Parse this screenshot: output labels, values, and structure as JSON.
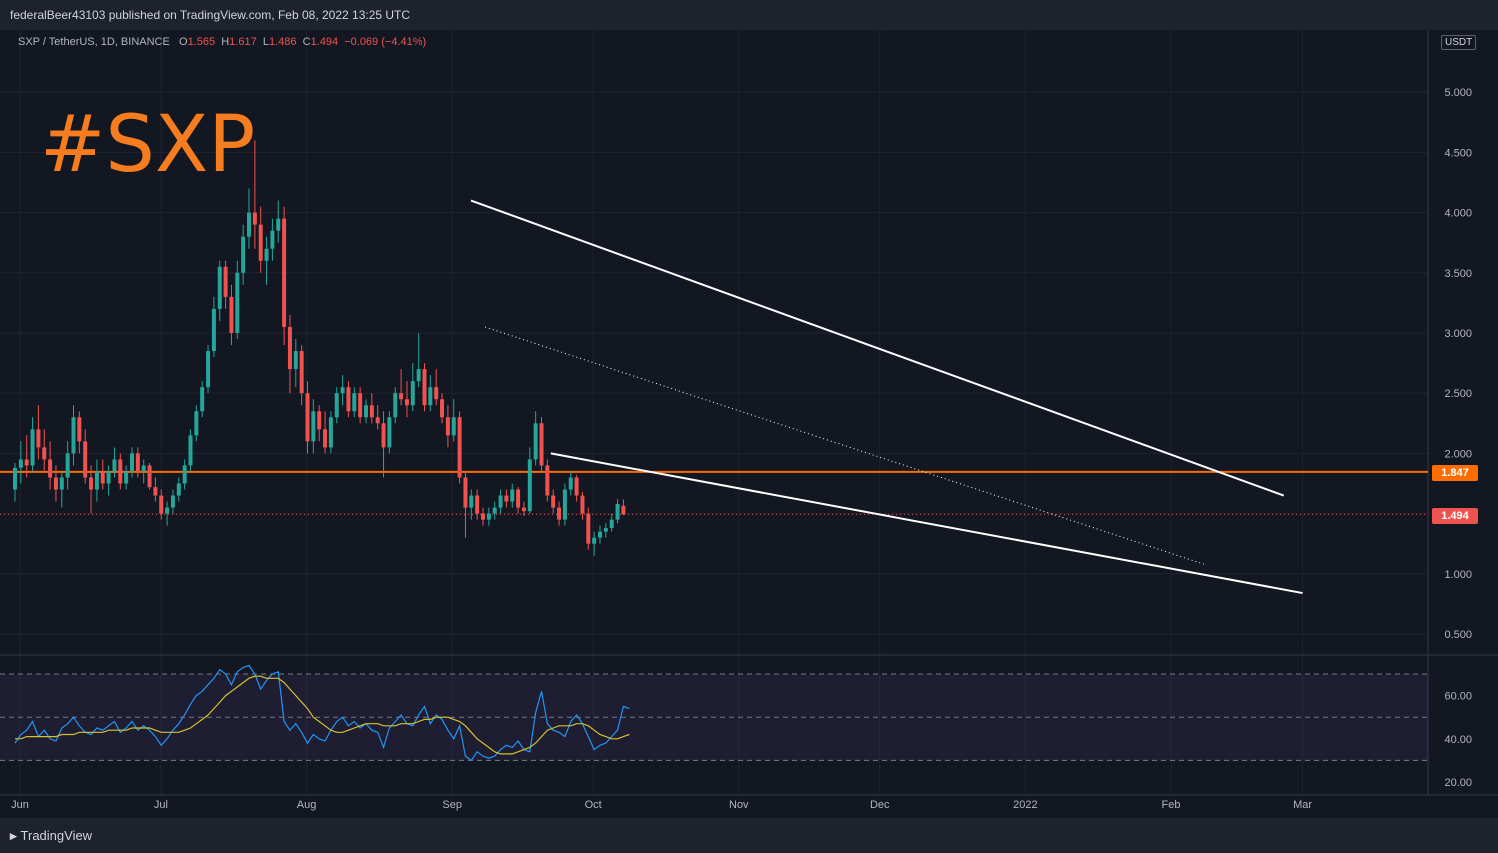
{
  "publisher_line": "federalBeer43103 published on TradingView.com, Feb 08, 2022 13:25 UTC",
  "symbol": {
    "pair": "SXP / TetherUS, 1D, BINANCE",
    "open_label": "O",
    "open": "1.565",
    "high_label": "H",
    "high": "1.617",
    "low_label": "L",
    "low": "1.486",
    "close_label": "C",
    "close": "1.494",
    "change": "−0.069 (−4.41%)"
  },
  "overlay_title": "#SXP",
  "currency_label": "USDT",
  "price_tags": {
    "level": "1.847",
    "last": "1.494"
  },
  "brand": "TradingView",
  "colors": {
    "up": "#26a69a",
    "down": "#ef5350",
    "level": "#ff6d00",
    "rsi": "#2196f3",
    "rsi_ma": "#d4c32a",
    "title": "#f57c1f"
  },
  "chart_data": [
    {
      "type": "candlestick",
      "title": "SXP / TetherUS, 1D, BINANCE",
      "x_ticks": [
        "Jun",
        "Jul",
        "Aug",
        "Sep",
        "Oct",
        "Nov",
        "Dec",
        "2022",
        "Feb",
        "Mar"
      ],
      "y_ticks": [
        "0.500",
        "1.000",
        "1.500",
        "2.000",
        "2.500",
        "3.000",
        "3.500",
        "4.000",
        "4.500",
        "5.000"
      ],
      "ylim": [
        0.5,
        5.0
      ],
      "horizontal_level": 1.847,
      "last_price": 1.494,
      "trendlines": [
        {
          "name": "upper",
          "from": [
            "2021-09-05",
            4.1
          ],
          "to": [
            "2022-02-25",
            1.65
          ],
          "style": "solid"
        },
        {
          "name": "lower",
          "from": [
            "2021-09-22",
            2.0
          ],
          "to": [
            "2022-03-01",
            0.84
          ],
          "style": "solid"
        },
        {
          "name": "middle",
          "from": [
            "2021-09-08",
            3.05
          ],
          "to": [
            "2022-02-08",
            1.08
          ],
          "style": "dotted"
        }
      ],
      "series": [
        {
          "values": [
            [
              1.7,
              1.92,
              1.6,
              1.88
            ],
            [
              1.88,
              2.1,
              1.75,
              1.95
            ],
            [
              1.95,
              2.15,
              1.8,
              1.9
            ],
            [
              1.9,
              2.3,
              1.85,
              2.2
            ],
            [
              2.2,
              2.4,
              1.95,
              2.05
            ],
            [
              2.05,
              2.2,
              1.85,
              1.95
            ],
            [
              1.95,
              2.1,
              1.7,
              1.8
            ],
            [
              1.8,
              1.9,
              1.6,
              1.7
            ],
            [
              1.7,
              1.85,
              1.55,
              1.8
            ],
            [
              1.8,
              2.1,
              1.7,
              2.0
            ],
            [
              2.0,
              2.4,
              1.9,
              2.3
            ],
            [
              2.3,
              2.35,
              2.0,
              2.1
            ],
            [
              2.1,
              2.2,
              1.75,
              1.8
            ],
            [
              1.8,
              1.9,
              1.5,
              1.7
            ],
            [
              1.7,
              1.95,
              1.6,
              1.85
            ],
            [
              1.85,
              1.95,
              1.7,
              1.75
            ],
            [
              1.75,
              1.9,
              1.65,
              1.85
            ],
            [
              1.85,
              2.05,
              1.8,
              1.95
            ],
            [
              1.95,
              2.0,
              1.7,
              1.75
            ],
            [
              1.75,
              1.9,
              1.7,
              1.85
            ],
            [
              1.85,
              2.05,
              1.8,
              2.0
            ],
            [
              2.0,
              2.05,
              1.8,
              1.85
            ],
            [
              1.85,
              1.95,
              1.75,
              1.9
            ],
            [
              1.9,
              1.92,
              1.7,
              1.72
            ],
            [
              1.72,
              1.8,
              1.6,
              1.65
            ],
            [
              1.65,
              1.7,
              1.45,
              1.5
            ],
            [
              1.5,
              1.6,
              1.4,
              1.55
            ],
            [
              1.55,
              1.7,
              1.5,
              1.65
            ],
            [
              1.65,
              1.8,
              1.6,
              1.75
            ],
            [
              1.75,
              1.95,
              1.7,
              1.9
            ],
            [
              1.9,
              2.2,
              1.85,
              2.15
            ],
            [
              2.15,
              2.4,
              2.1,
              2.35
            ],
            [
              2.35,
              2.6,
              2.3,
              2.55
            ],
            [
              2.55,
              2.9,
              2.5,
              2.85
            ],
            [
              2.85,
              3.3,
              2.8,
              3.2
            ],
            [
              3.2,
              3.6,
              3.1,
              3.55
            ],
            [
              3.55,
              3.6,
              3.2,
              3.3
            ],
            [
              3.3,
              3.4,
              2.9,
              3.0
            ],
            [
              3.0,
              3.6,
              2.95,
              3.5
            ],
            [
              3.5,
              3.9,
              3.4,
              3.8
            ],
            [
              3.8,
              4.2,
              3.7,
              4.0
            ],
            [
              4.0,
              4.6,
              3.7,
              3.9
            ],
            [
              3.9,
              4.05,
              3.5,
              3.6
            ],
            [
              3.6,
              3.8,
              3.4,
              3.7
            ],
            [
              3.7,
              3.95,
              3.6,
              3.85
            ],
            [
              3.85,
              4.1,
              3.75,
              3.95
            ],
            [
              3.95,
              4.05,
              2.9,
              3.05
            ],
            [
              3.05,
              3.15,
              2.5,
              2.7
            ],
            [
              2.7,
              2.95,
              2.55,
              2.85
            ],
            [
              2.85,
              2.9,
              2.4,
              2.5
            ],
            [
              2.5,
              2.6,
              2.0,
              2.1
            ],
            [
              2.1,
              2.45,
              2.0,
              2.35
            ],
            [
              2.35,
              2.4,
              2.1,
              2.2
            ],
            [
              2.2,
              2.35,
              2.0,
              2.05
            ],
            [
              2.05,
              2.35,
              2.0,
              2.3
            ],
            [
              2.3,
              2.55,
              2.25,
              2.5
            ],
            [
              2.5,
              2.65,
              2.4,
              2.55
            ],
            [
              2.55,
              2.6,
              2.3,
              2.35
            ],
            [
              2.35,
              2.55,
              2.3,
              2.5
            ],
            [
              2.5,
              2.55,
              2.25,
              2.3
            ],
            [
              2.3,
              2.45,
              2.25,
              2.4
            ],
            [
              2.4,
              2.5,
              2.25,
              2.3
            ],
            [
              2.3,
              2.4,
              2.2,
              2.25
            ],
            [
              2.25,
              2.35,
              1.8,
              2.05
            ],
            [
              2.05,
              2.35,
              2.0,
              2.3
            ],
            [
              2.3,
              2.55,
              2.25,
              2.5
            ],
            [
              2.5,
              2.7,
              2.4,
              2.45
            ],
            [
              2.45,
              2.6,
              2.3,
              2.4
            ],
            [
              2.4,
              2.75,
              2.35,
              2.6
            ],
            [
              2.6,
              3.0,
              2.55,
              2.7
            ],
            [
              2.7,
              2.75,
              2.35,
              2.4
            ],
            [
              2.4,
              2.65,
              2.35,
              2.55
            ],
            [
              2.55,
              2.7,
              2.4,
              2.45
            ],
            [
              2.45,
              2.5,
              2.25,
              2.3
            ],
            [
              2.3,
              2.4,
              2.05,
              2.15
            ],
            [
              2.15,
              2.45,
              2.1,
              2.3
            ],
            [
              2.3,
              2.35,
              1.75,
              1.8
            ],
            [
              1.8,
              1.85,
              1.3,
              1.55
            ],
            [
              1.55,
              1.7,
              1.45,
              1.65
            ],
            [
              1.65,
              1.7,
              1.45,
              1.5
            ],
            [
              1.5,
              1.55,
              1.4,
              1.45
            ],
            [
              1.45,
              1.55,
              1.4,
              1.5
            ],
            [
              1.5,
              1.6,
              1.45,
              1.55
            ],
            [
              1.55,
              1.7,
              1.5,
              1.65
            ],
            [
              1.65,
              1.7,
              1.55,
              1.6
            ],
            [
              1.6,
              1.75,
              1.55,
              1.7
            ],
            [
              1.7,
              1.72,
              1.5,
              1.55
            ],
            [
              1.55,
              1.6,
              1.48,
              1.52
            ],
            [
              1.52,
              2.05,
              1.5,
              1.95
            ],
            [
              1.95,
              2.35,
              1.9,
              2.25
            ],
            [
              2.25,
              2.3,
              1.85,
              1.9
            ],
            [
              1.9,
              1.95,
              1.6,
              1.65
            ],
            [
              1.65,
              1.7,
              1.5,
              1.55
            ],
            [
              1.55,
              1.6,
              1.4,
              1.45
            ],
            [
              1.45,
              1.75,
              1.4,
              1.7
            ],
            [
              1.7,
              1.85,
              1.65,
              1.8
            ],
            [
              1.8,
              1.82,
              1.6,
              1.65
            ],
            [
              1.65,
              1.68,
              1.45,
              1.5
            ],
            [
              1.5,
              1.55,
              1.2,
              1.25
            ],
            [
              1.25,
              1.35,
              1.15,
              1.3
            ],
            [
              1.3,
              1.4,
              1.25,
              1.35
            ],
            [
              1.35,
              1.42,
              1.3,
              1.38
            ],
            [
              1.38,
              1.5,
              1.35,
              1.45
            ],
            [
              1.45,
              1.62,
              1.42,
              1.58
            ],
            [
              1.565,
              1.617,
              1.486,
              1.494
            ]
          ]
        }
      ]
    },
    {
      "type": "line",
      "title": "",
      "x_ticks": [
        "Jun",
        "Jul",
        "Aug",
        "Sep",
        "Oct",
        "Nov",
        "Dec",
        "2022",
        "Feb",
        "Mar"
      ],
      "y_ticks": [
        "20.00",
        "40.00",
        "60.00"
      ],
      "ylim": [
        15,
        75
      ],
      "bands": [
        30,
        50,
        70
      ],
      "series": [
        {
          "name": "",
          "values": [
            38,
            42,
            44,
            48,
            41,
            44,
            40,
            39,
            45,
            47,
            50,
            46,
            43,
            42,
            45,
            44,
            46,
            48,
            43,
            45,
            48,
            44,
            46,
            44,
            41,
            37,
            40,
            44,
            47,
            51,
            56,
            60,
            62,
            65,
            68,
            72,
            70,
            65,
            71,
            73,
            74,
            70,
            63,
            67,
            70,
            71,
            48,
            44,
            47,
            43,
            38,
            42,
            40,
            39,
            44,
            48,
            50,
            46,
            48,
            45,
            47,
            44,
            43,
            36,
            45,
            48,
            51,
            47,
            46,
            51,
            55,
            47,
            51,
            49,
            44,
            40,
            46,
            32,
            30,
            34,
            32,
            31,
            32,
            35,
            37,
            36,
            39,
            35,
            34,
            52,
            62,
            47,
            44,
            43,
            41,
            48,
            51,
            47,
            41,
            35,
            37,
            38,
            41,
            44,
            55,
            54
          ]
        },
        {
          "name": "",
          "values": [
            40,
            40,
            41,
            41,
            41,
            41,
            41,
            41,
            42,
            42,
            42,
            43,
            43,
            43,
            43,
            43,
            44,
            44,
            44,
            44,
            45,
            45,
            45,
            45,
            44,
            43,
            43,
            43,
            43,
            44,
            45,
            47,
            49,
            51,
            54,
            57,
            60,
            62,
            64,
            66,
            68,
            69,
            69,
            68,
            68,
            68,
            66,
            63,
            60,
            57,
            54,
            50,
            48,
            46,
            44,
            43,
            43,
            44,
            45,
            46,
            47,
            47,
            47,
            46,
            46,
            46,
            47,
            47,
            47,
            48,
            49,
            49,
            50,
            50,
            50,
            49,
            48,
            46,
            43,
            40,
            38,
            36,
            34,
            33,
            33,
            33,
            34,
            35,
            36,
            38,
            41,
            44,
            45,
            46,
            46,
            46,
            47,
            47,
            46,
            44,
            42,
            41,
            40,
            40,
            41,
            42
          ]
        }
      ]
    }
  ]
}
